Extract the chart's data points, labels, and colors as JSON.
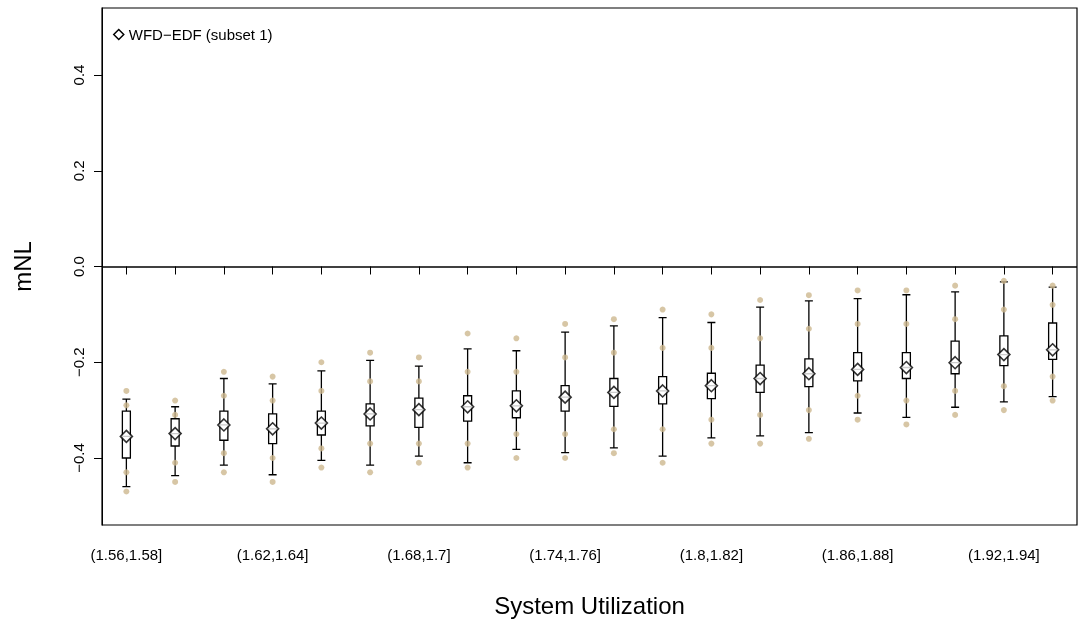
{
  "chart_data": {
    "type": "box",
    "xlabel": "System Utilization",
    "ylabel": "mNL",
    "categories": [
      "(1.56,1.58]",
      null,
      null,
      "(1.62,1.64]",
      null,
      null,
      "(1.68,1.7]",
      null,
      null,
      "(1.74,1.76]",
      null,
      null,
      "(1.8,1.82]",
      null,
      null,
      "(1.86,1.88]",
      null,
      null,
      "(1.92,1.94]",
      null
    ],
    "ylim": [
      -0.54,
      0.54
    ],
    "yticks": [
      {
        "value": -0.4,
        "label": "−0.4"
      },
      {
        "value": -0.2,
        "label": "−0.2"
      },
      {
        "value": 0,
        "label": "0.0"
      },
      {
        "value": 0.2,
        "label": "0.2"
      },
      {
        "value": 0.4,
        "label": "0.4"
      }
    ],
    "grid": false,
    "legend": "top left",
    "marker": "diamond",
    "ref_lines": [
      {
        "axis": "y",
        "value": 0,
        "color": "#000000"
      }
    ],
    "series": [
      {
        "type": "scatter",
        "marker": "circle",
        "color": "#cdb88f",
        "values": [
          -0.26,
          -0.28,
          -0.22,
          -0.23,
          -0.2,
          -0.18,
          -0.19,
          -0.14,
          -0.15,
          -0.12,
          -0.11,
          -0.09,
          -0.1,
          -0.07,
          -0.06,
          -0.05,
          -0.05,
          -0.04,
          -0.03,
          -0.04
        ]
      },
      {
        "type": "scatter",
        "marker": "circle",
        "color": "#cdb88f",
        "values": [
          -0.29,
          -0.31,
          -0.27,
          -0.28,
          -0.26,
          -0.24,
          -0.24,
          -0.22,
          -0.22,
          -0.19,
          -0.18,
          -0.17,
          -0.17,
          -0.15,
          -0.13,
          -0.12,
          -0.12,
          -0.11,
          -0.09,
          -0.08
        ]
      },
      {
        "type": "scatter",
        "marker": "circle",
        "color": "#cdb88f",
        "values": [
          -0.43,
          -0.41,
          -0.39,
          -0.4,
          -0.38,
          -0.37,
          -0.37,
          -0.37,
          -0.35,
          -0.35,
          -0.34,
          -0.34,
          -0.32,
          -0.31,
          -0.3,
          -0.27,
          -0.28,
          -0.26,
          -0.25,
          -0.23
        ]
      },
      {
        "type": "scatter",
        "marker": "circle",
        "color": "#cdb88f",
        "values": [
          -0.47,
          -0.45,
          -0.43,
          -0.45,
          -0.42,
          -0.43,
          -0.41,
          -0.42,
          -0.4,
          -0.4,
          -0.39,
          -0.41,
          -0.37,
          -0.37,
          -0.36,
          -0.32,
          -0.33,
          -0.31,
          -0.3,
          -0.28
        ]
      },
      {
        "name": "WFD−EDF (subset 1)",
        "color": "#000000",
        "boxes": [
          {
            "low": -0.46,
            "q1": -0.4,
            "median": -0.355,
            "q3": -0.302,
            "high": -0.277,
            "mean": -0.355
          },
          {
            "low": -0.437,
            "q1": -0.375,
            "median": -0.349,
            "q3": -0.318,
            "high": -0.293,
            "mean": -0.349
          },
          {
            "low": -0.415,
            "q1": -0.363,
            "median": -0.331,
            "q3": -0.302,
            "high": -0.234,
            "mean": -0.331
          },
          {
            "low": -0.435,
            "q1": -0.37,
            "median": -0.339,
            "q3": -0.308,
            "high": -0.245,
            "mean": -0.339
          },
          {
            "low": -0.405,
            "q1": -0.352,
            "median": -0.327,
            "q3": -0.302,
            "high": -0.218,
            "mean": -0.327
          },
          {
            "low": -0.415,
            "q1": -0.333,
            "median": -0.308,
            "q3": -0.287,
            "high": -0.196,
            "mean": -0.308
          },
          {
            "low": -0.396,
            "q1": -0.336,
            "median": -0.299,
            "q3": -0.275,
            "high": -0.208,
            "mean": -0.299
          },
          {
            "low": -0.41,
            "q1": -0.323,
            "median": -0.293,
            "q3": -0.27,
            "high": -0.172,
            "mean": -0.293
          },
          {
            "low": -0.382,
            "q1": -0.316,
            "median": -0.291,
            "q3": -0.26,
            "high": -0.176,
            "mean": -0.291
          },
          {
            "low": -0.389,
            "q1": -0.302,
            "median": -0.273,
            "q3": -0.249,
            "high": -0.137,
            "mean": -0.273
          },
          {
            "low": -0.379,
            "q1": -0.292,
            "median": -0.263,
            "q3": -0.234,
            "high": -0.124,
            "mean": -0.263
          },
          {
            "low": -0.396,
            "q1": -0.287,
            "median": -0.26,
            "q3": -0.23,
            "high": -0.107,
            "mean": -0.26
          },
          {
            "low": -0.358,
            "q1": -0.276,
            "median": -0.249,
            "q3": -0.223,
            "high": -0.117,
            "mean": -0.249
          },
          {
            "low": -0.354,
            "q1": -0.263,
            "median": -0.234,
            "q3": -0.206,
            "high": -0.085,
            "mean": -0.234
          },
          {
            "low": -0.347,
            "q1": -0.251,
            "median": -0.224,
            "q3": -0.193,
            "high": -0.072,
            "mean": -0.224
          },
          {
            "low": -0.306,
            "q1": -0.239,
            "median": -0.215,
            "q3": -0.18,
            "high": -0.067,
            "mean": -0.215
          },
          {
            "low": -0.315,
            "q1": -0.234,
            "median": -0.211,
            "q3": -0.18,
            "high": -0.059,
            "mean": -0.211
          },
          {
            "low": -0.294,
            "q1": -0.224,
            "median": -0.201,
            "q3": -0.156,
            "high": -0.053,
            "mean": -0.201
          },
          {
            "low": -0.283,
            "q1": -0.207,
            "median": -0.184,
            "q3": -0.145,
            "high": -0.032,
            "mean": -0.184
          },
          {
            "low": -0.272,
            "q1": -0.194,
            "median": -0.174,
            "q3": -0.118,
            "high": -0.043,
            "mean": -0.174
          }
        ]
      }
    ]
  }
}
